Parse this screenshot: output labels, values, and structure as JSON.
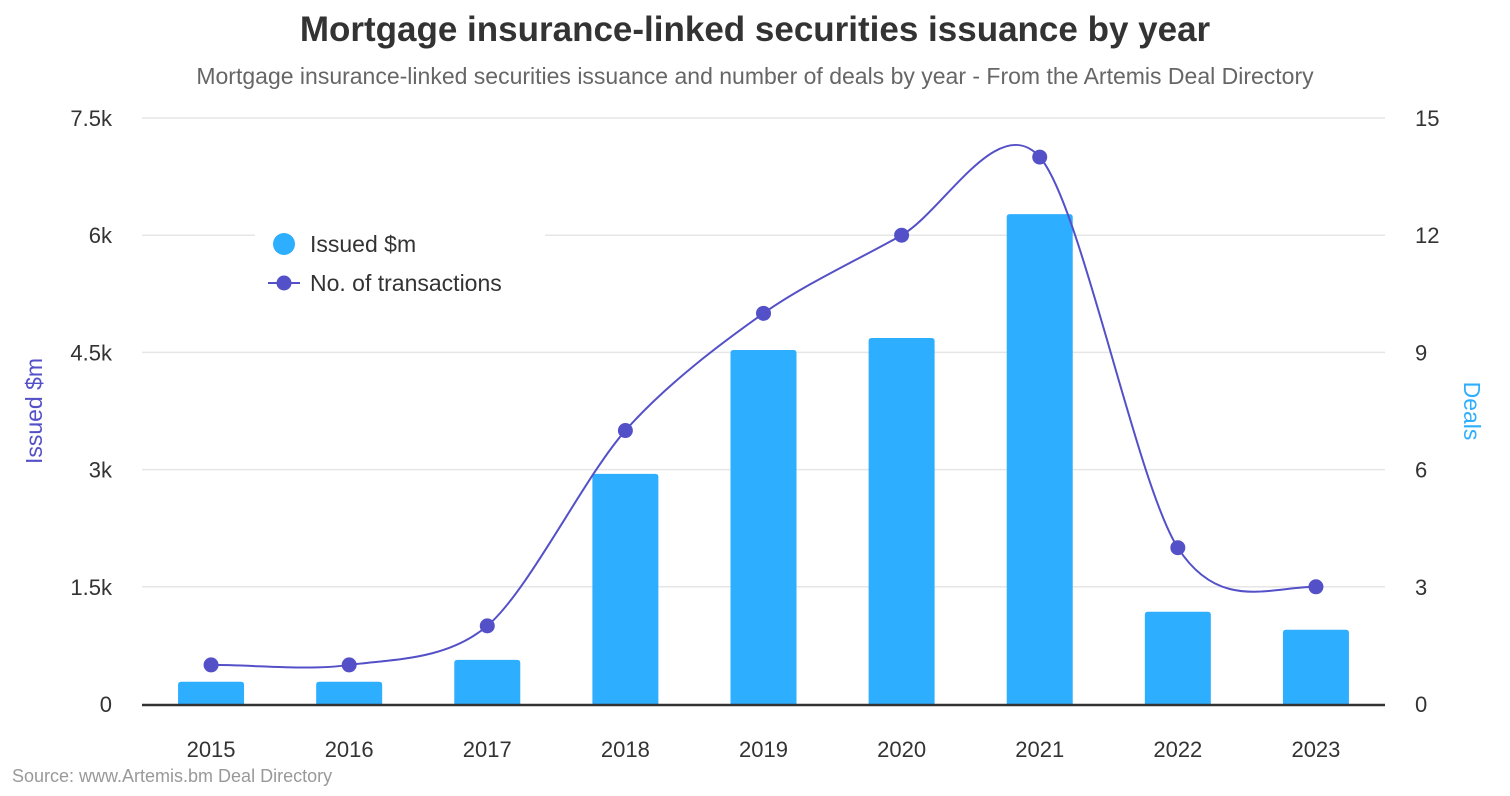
{
  "chart_data": {
    "type": "bar+line",
    "title": "Mortgage insurance-linked securities issuance by year",
    "subtitle": "Mortgage insurance-linked securities issuance and number of deals by year - From the Artemis Deal Directory",
    "credits": "Source: www.Artemis.bm Deal Directory",
    "categories": [
      "2015",
      "2016",
      "2017",
      "2018",
      "2019",
      "2020",
      "2021",
      "2022",
      "2023"
    ],
    "y_left": {
      "label": "Issued $m",
      "range": [
        0,
        7500
      ],
      "ticks": [
        "0",
        "1.5k",
        "3k",
        "4.5k",
        "6k",
        "7.5k"
      ],
      "tick_values": [
        0,
        1500,
        3000,
        4500,
        6000,
        7500
      ],
      "label_color": "#5450c8"
    },
    "y_right": {
      "label": "Deals",
      "range": [
        0,
        15
      ],
      "ticks": [
        "0",
        "3",
        "6",
        "9",
        "12",
        "15"
      ],
      "tick_values": [
        0,
        3,
        6,
        9,
        12,
        15
      ],
      "label_color": "#2eaeff"
    },
    "grid": true,
    "legend_position": "top-left inside",
    "series": [
      {
        "name": "Issued $m",
        "type": "bar",
        "axis": "left",
        "color": "#2eaeff",
        "values": [
          285,
          285,
          565,
          2945,
          4530,
          4685,
          6270,
          1180,
          950
        ]
      },
      {
        "name": "No. of transactions",
        "type": "spline",
        "axis": "right",
        "color": "#5450c8",
        "values": [
          1,
          1,
          2,
          7,
          10,
          12,
          14,
          4,
          3
        ]
      }
    ]
  }
}
